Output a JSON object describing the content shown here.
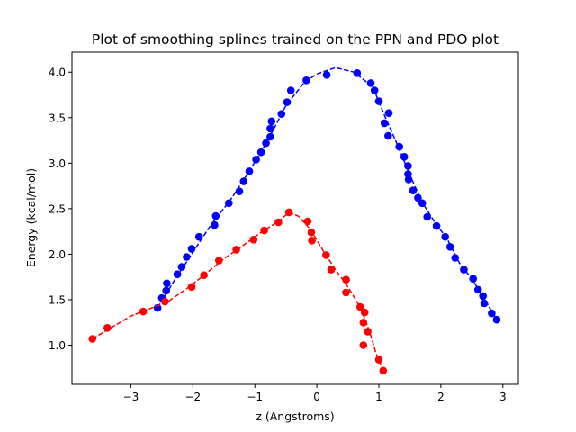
{
  "chart_data": {
    "type": "scatter",
    "title": "Plot of smoothing splines trained on the PPN and PDO plot",
    "xlabel": "z (Angstroms)",
    "ylabel": "Energy (kcal/mol)",
    "xlim": [
      -3.95,
      3.25
    ],
    "ylim": [
      0.57,
      4.22
    ],
    "xticks": [
      -3,
      -2,
      -1,
      0,
      1,
      2,
      3
    ],
    "yticks": [
      1.0,
      1.5,
      2.0,
      2.5,
      3.0,
      3.5,
      4.0
    ],
    "xtick_labels": [
      "−3",
      "−2",
      "−1",
      "0",
      "1",
      "2",
      "3"
    ],
    "ytick_labels": [
      "1.0",
      "1.5",
      "2.0",
      "2.5",
      "3.0",
      "3.5",
      "4.0"
    ],
    "grid": false,
    "legend": "none",
    "series": [
      {
        "color": "#0000ff",
        "points": [
          [
            -2.57,
            1.41
          ],
          [
            -2.5,
            1.52
          ],
          [
            -2.43,
            1.6
          ],
          [
            -2.42,
            1.68
          ],
          [
            -2.25,
            1.78
          ],
          [
            -2.18,
            1.86
          ],
          [
            -2.1,
            1.97
          ],
          [
            -2.02,
            2.06
          ],
          [
            -1.9,
            2.19
          ],
          [
            -1.65,
            2.32
          ],
          [
            -1.63,
            2.42
          ],
          [
            -1.42,
            2.56
          ],
          [
            -1.25,
            2.69
          ],
          [
            -1.18,
            2.8
          ],
          [
            -1.09,
            2.91
          ],
          [
            -0.98,
            3.04
          ],
          [
            -0.9,
            3.12
          ],
          [
            -0.82,
            3.22
          ],
          [
            -0.75,
            3.29
          ],
          [
            -0.75,
            3.38
          ],
          [
            -0.73,
            3.46
          ],
          [
            -0.57,
            3.54
          ],
          [
            -0.48,
            3.67
          ],
          [
            -0.42,
            3.8
          ],
          [
            -0.17,
            3.91
          ],
          [
            0.16,
            3.97
          ],
          [
            0.65,
            3.99
          ],
          [
            0.87,
            3.88
          ],
          [
            0.93,
            3.8
          ],
          [
            1.0,
            3.68
          ],
          [
            1.09,
            3.44
          ],
          [
            1.16,
            3.55
          ],
          [
            1.15,
            3.3
          ],
          [
            1.33,
            3.18
          ],
          [
            1.41,
            3.07
          ],
          [
            1.47,
            2.97
          ],
          [
            1.47,
            2.88
          ],
          [
            1.48,
            2.82
          ],
          [
            1.55,
            2.7
          ],
          [
            1.63,
            2.62
          ],
          [
            1.7,
            2.56
          ],
          [
            1.78,
            2.41
          ],
          [
            1.93,
            2.31
          ],
          [
            2.07,
            2.19
          ],
          [
            2.15,
            2.08
          ],
          [
            2.23,
            1.96
          ],
          [
            2.37,
            1.83
          ],
          [
            2.52,
            1.73
          ],
          [
            2.6,
            1.61
          ],
          [
            2.68,
            1.54
          ],
          [
            2.7,
            1.46
          ],
          [
            2.82,
            1.35
          ],
          [
            2.9,
            1.28
          ]
        ],
        "curve": [
          [
            -2.57,
            1.41
          ],
          [
            -2.3,
            1.71
          ],
          [
            -2.0,
            2.02
          ],
          [
            -1.7,
            2.33
          ],
          [
            -1.4,
            2.59
          ],
          [
            -1.1,
            2.9
          ],
          [
            -0.8,
            3.24
          ],
          [
            -0.5,
            3.63
          ],
          [
            -0.2,
            3.89
          ],
          [
            0.0,
            3.98
          ],
          [
            0.3,
            4.05
          ],
          [
            0.6,
            4.0
          ],
          [
            0.9,
            3.84
          ],
          [
            1.1,
            3.51
          ],
          [
            1.3,
            3.2
          ],
          [
            1.5,
            2.87
          ],
          [
            1.7,
            2.57
          ],
          [
            1.9,
            2.35
          ],
          [
            2.1,
            2.17
          ],
          [
            2.3,
            1.9
          ],
          [
            2.5,
            1.73
          ],
          [
            2.7,
            1.51
          ],
          [
            2.9,
            1.28
          ]
        ]
      },
      {
        "color": "#ff0000",
        "points": [
          [
            -3.62,
            1.07
          ],
          [
            -3.38,
            1.19
          ],
          [
            -2.8,
            1.37
          ],
          [
            -2.45,
            1.48
          ],
          [
            -2.02,
            1.64
          ],
          [
            -1.82,
            1.77
          ],
          [
            -1.58,
            1.93
          ],
          [
            -1.3,
            2.05
          ],
          [
            -1.02,
            2.16
          ],
          [
            -0.85,
            2.26
          ],
          [
            -0.62,
            2.35
          ],
          [
            -0.45,
            2.46
          ],
          [
            -0.15,
            2.36
          ],
          [
            -0.09,
            2.24
          ],
          [
            -0.08,
            2.15
          ],
          [
            0.15,
            1.99
          ],
          [
            0.23,
            1.83
          ],
          [
            0.47,
            1.72
          ],
          [
            0.47,
            1.58
          ],
          [
            0.7,
            1.42
          ],
          [
            0.77,
            1.36
          ],
          [
            0.75,
            1.25
          ],
          [
            0.82,
            1.15
          ],
          [
            0.75,
            1.0
          ],
          [
            1.0,
            0.84
          ],
          [
            1.07,
            0.72
          ]
        ],
        "curve": [
          [
            -3.62,
            1.07
          ],
          [
            -3.3,
            1.2
          ],
          [
            -3.0,
            1.32
          ],
          [
            -2.7,
            1.4
          ],
          [
            -2.4,
            1.48
          ],
          [
            -2.1,
            1.62
          ],
          [
            -1.8,
            1.78
          ],
          [
            -1.5,
            1.95
          ],
          [
            -1.2,
            2.09
          ],
          [
            -0.9,
            2.24
          ],
          [
            -0.6,
            2.37
          ],
          [
            -0.45,
            2.46
          ],
          [
            -0.3,
            2.42
          ],
          [
            -0.1,
            2.27
          ],
          [
            0.1,
            2.04
          ],
          [
            0.3,
            1.83
          ],
          [
            0.5,
            1.64
          ],
          [
            0.7,
            1.42
          ],
          [
            0.85,
            1.15
          ],
          [
            0.95,
            0.92
          ],
          [
            1.07,
            0.72
          ]
        ]
      }
    ]
  }
}
